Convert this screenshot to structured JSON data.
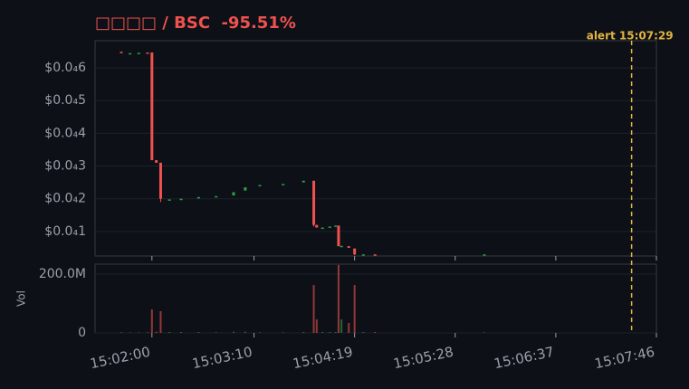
{
  "chart_data": {
    "type": "candlestick",
    "title": "□□□□ / BSC",
    "change": "-95.51%",
    "up_color": "#2ea043",
    "down_color": "#f0514f",
    "xlim": [
      "15:01:21",
      "15:07:46"
    ],
    "xticks": [
      "15:02:00",
      "15:03:10",
      "15:04:19",
      "15:05:28",
      "15:06:37",
      "15:07:46"
    ],
    "ylim": [
      2.5e-06,
      6.83e-05
    ],
    "yticks": [
      {
        "value": 1e-05,
        "label": "$0.0₄1"
      },
      {
        "value": 2e-05,
        "label": "$0.0₄2"
      },
      {
        "value": 3e-05,
        "label": "$0.0₄3"
      },
      {
        "value": 4e-05,
        "label": "$0.0₄4"
      },
      {
        "value": 5e-05,
        "label": "$0.0₄5"
      },
      {
        "value": 6e-05,
        "label": "$0.0₄6"
      }
    ],
    "volume_label": "Vol",
    "vlim": [
      0,
      234000000
    ],
    "vticks": [
      0,
      {
        "value": 200000000,
        "label": "200.0M"
      }
    ],
    "grid": true,
    "alert": {
      "x": "15:07:29",
      "label": "alert 15:07:29",
      "color": "#e3b341"
    },
    "candles": [
      {
        "x": "15:01:39",
        "open": 6.49e-05,
        "high": 6.49e-05,
        "low": 6.45e-05,
        "close": 6.46e-05,
        "volume": 2000000
      },
      {
        "x": "15:01:45",
        "open": 6.43e-05,
        "high": 6.45e-05,
        "low": 6.43e-05,
        "close": 6.45e-05,
        "volume": 1500000
      },
      {
        "x": "15:01:51",
        "open": 6.45e-05,
        "high": 6.46e-05,
        "low": 6.45e-05,
        "close": 6.46e-05,
        "volume": 1500000
      },
      {
        "x": "15:01:57",
        "open": 6.47e-05,
        "high": 6.47e-05,
        "low": 6.45e-05,
        "close": 6.45e-05,
        "volume": 2000000
      },
      {
        "x": "15:02:00",
        "open": 6.47e-05,
        "high": 6.47e-05,
        "low": 3.18e-05,
        "close": 3.18e-05,
        "volume": 80000000
      },
      {
        "x": "15:02:03",
        "open": 3.18e-05,
        "high": 3.18e-05,
        "low": 3.1e-05,
        "close": 3.1e-05,
        "volume": 4000000
      },
      {
        "x": "15:02:06",
        "open": 3.1e-05,
        "high": 3.1e-05,
        "low": 1.9e-05,
        "close": 2e-05,
        "volume": 74000000
      },
      {
        "x": "15:02:12",
        "open": 1.95e-05,
        "high": 1.98e-05,
        "low": 1.95e-05,
        "close": 1.98e-05,
        "volume": 3000000
      },
      {
        "x": "15:02:20",
        "open": 1.98e-05,
        "high": 2e-05,
        "low": 1.98e-05,
        "close": 2e-05,
        "volume": 3000000
      },
      {
        "x": "15:02:32",
        "open": 2.01e-05,
        "high": 2.05e-05,
        "low": 2.01e-05,
        "close": 2.05e-05,
        "volume": 3000000
      },
      {
        "x": "15:02:44",
        "open": 2.05e-05,
        "high": 2.08e-05,
        "low": 2.05e-05,
        "close": 2.08e-05,
        "volume": 2000000
      },
      {
        "x": "15:02:56",
        "open": 2.1e-05,
        "high": 2.2e-05,
        "low": 2.1e-05,
        "close": 2.2e-05,
        "volume": 4000000
      },
      {
        "x": "15:03:04",
        "open": 2.25e-05,
        "high": 2.35e-05,
        "low": 2.25e-05,
        "close": 2.35e-05,
        "volume": 4000000
      },
      {
        "x": "15:03:14",
        "open": 2.38e-05,
        "high": 2.42e-05,
        "low": 2.38e-05,
        "close": 2.42e-05,
        "volume": 2000000
      },
      {
        "x": "15:03:30",
        "open": 2.42e-05,
        "high": 2.45e-05,
        "low": 2.42e-05,
        "close": 2.45e-05,
        "volume": 2000000
      },
      {
        "x": "15:03:44",
        "open": 2.5e-05,
        "high": 2.55e-05,
        "low": 2.5e-05,
        "close": 2.55e-05,
        "volume": 3000000
      },
      {
        "x": "15:03:51",
        "open": 2.55e-05,
        "high": 2.55e-05,
        "low": 1.15e-05,
        "close": 1.2e-05,
        "volume": 163000000
      },
      {
        "x": "15:03:53",
        "open": 1.2e-05,
        "high": 1.2e-05,
        "low": 1.12e-05,
        "close": 1.12e-05,
        "volume": 46000000
      },
      {
        "x": "15:03:57",
        "open": 1.1e-05,
        "high": 1.12e-05,
        "low": 1.1e-05,
        "close": 1.12e-05,
        "volume": 3000000
      },
      {
        "x": "15:04:02",
        "open": 1.13e-05,
        "high": 1.15e-05,
        "low": 1.13e-05,
        "close": 1.15e-05,
        "volume": 3000000
      },
      {
        "x": "15:04:06",
        "open": 1.15e-05,
        "high": 1.18e-05,
        "low": 1.15e-05,
        "close": 1.18e-05,
        "volume": 3000000
      },
      {
        "x": "15:04:08",
        "open": 1.18e-05,
        "high": 1.18e-05,
        "low": 5.5e-06,
        "close": 5.5e-06,
        "volume": 231000000
      },
      {
        "x": "15:04:10",
        "open": 5.5e-06,
        "high": 5.6e-06,
        "low": 5.5e-06,
        "close": 5.6e-06,
        "volume": 46000000
      },
      {
        "x": "15:04:15",
        "open": 5.5e-06,
        "high": 5.5e-06,
        "low": 5e-06,
        "close": 5e-06,
        "volume": 34000000
      },
      {
        "x": "15:04:19",
        "open": 4.8e-06,
        "high": 4.8e-06,
        "low": 2.8e-06,
        "close": 3e-06,
        "volume": 163000000
      },
      {
        "x": "15:04:25",
        "open": 2.8e-06,
        "high": 3e-06,
        "low": 2.8e-06,
        "close": 3e-06,
        "volume": 3000000
      },
      {
        "x": "15:04:33",
        "open": 3e-06,
        "high": 3e-06,
        "low": 2.8e-06,
        "close": 2.8e-06,
        "volume": 3000000
      },
      {
        "x": "15:05:48",
        "open": 2.8e-06,
        "high": 3e-06,
        "low": 2.8e-06,
        "close": 3e-06,
        "volume": 2000000
      }
    ]
  }
}
